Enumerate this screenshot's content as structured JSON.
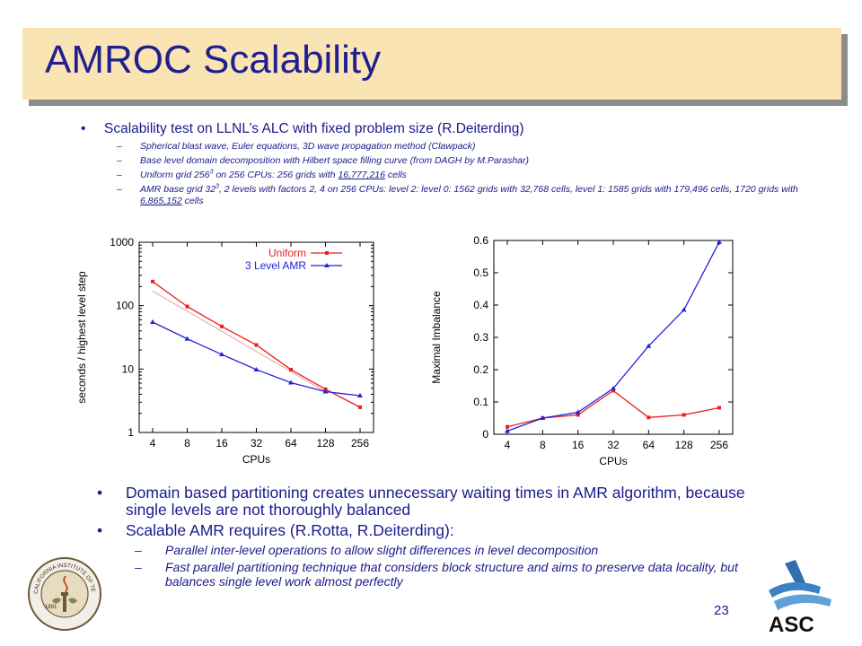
{
  "slide": {
    "title": "AMROC Scalability",
    "page_number": "23"
  },
  "top_bullets": {
    "main": "Scalability test on LLNL’s ALC with fixed problem size (R.Deiterding)",
    "sub1": "Spherical blast wave, Euler equations, 3D wave propagation method (Clawpack)",
    "sub2": "Base level domain decomposition with Hilbert space filling curve (from DAGH by M.Parashar)",
    "sub3_a": "Uniform grid 256",
    "sub3_sup": "3",
    "sub3_b": " on 256 CPUs: 256 grids with ",
    "sub3_link": "16,777,216",
    "sub3_c": " cells",
    "sub4_a": "AMR base grid 32",
    "sub4_sup": "3",
    "sub4_b": ", 2 levels with factors 2, 4 on 256 CPUs: level 2: level 0: 1562 grids with 32,768 cells, level 1: 1585 grids with 179,496 cells, 1720 grids with ",
    "sub4_link": "6,865,152",
    "sub4_c": " cells"
  },
  "bottom_bullets": {
    "b1": "Domain based partitioning creates unnecessary waiting times in AMR algorithm, because single levels are not thoroughly balanced",
    "b2": "Scalable AMR requires (R.Rotta, R.Deiterding):",
    "s1": "Parallel inter-level operations to allow slight differences in level decomposition",
    "s2": "Fast parallel partitioning technique that considers block structure and aims to preserve data locality, but balances single level work almost perfectly"
  },
  "logos": {
    "left_text": "CALIFORNIA INSTITUTE OF TECHNOLOGY",
    "left_year": "1891",
    "right_text": "ASC"
  },
  "chart_data": [
    {
      "type": "line",
      "xlabel": "CPUs",
      "ylabel": "seconds / highest level step",
      "x": [
        4,
        8,
        16,
        32,
        64,
        128,
        256
      ],
      "x_ticks": [
        "4",
        "8",
        "16",
        "32",
        "64",
        "128",
        "256"
      ],
      "y_ticks": [
        "1",
        "10",
        "100",
        "1000"
      ],
      "yscale": "log",
      "ylim": [
        1,
        1000
      ],
      "legend_position": "top-right",
      "series": [
        {
          "name": "Uniform",
          "color": "#ee1c1c",
          "marker": "square",
          "values": [
            240,
            97,
            47,
            24,
            9.8,
            4.8,
            2.5
          ]
        },
        {
          "name": "3 Level AMR",
          "color": "#2222dd",
          "marker": "triangle",
          "values": [
            55,
            30,
            17,
            9.8,
            6.1,
            4.4,
            3.8
          ]
        }
      ],
      "trend_line": {
        "color": "#e8a0a0",
        "values": [
          170,
          4.4
        ]
      }
    },
    {
      "type": "line",
      "xlabel": "CPUs",
      "ylabel": "Maximal Imbalance",
      "x": [
        4,
        8,
        16,
        32,
        64,
        128,
        256
      ],
      "x_ticks": [
        "4",
        "8",
        "16",
        "32",
        "64",
        "128",
        "256"
      ],
      "y_ticks": [
        "0",
        "0.1",
        "0.2",
        "0.3",
        "0.4",
        "0.5",
        "0.6"
      ],
      "ylim": [
        0,
        0.6
      ],
      "series": [
        {
          "color": "#ee1c1c",
          "marker": "square",
          "values": [
            0.023,
            0.05,
            0.06,
            0.135,
            0.052,
            0.06,
            0.082
          ]
        },
        {
          "color": "#2222dd",
          "marker": "triangle",
          "values": [
            0.01,
            0.05,
            0.068,
            0.142,
            0.273,
            0.385,
            0.595
          ]
        }
      ]
    }
  ]
}
